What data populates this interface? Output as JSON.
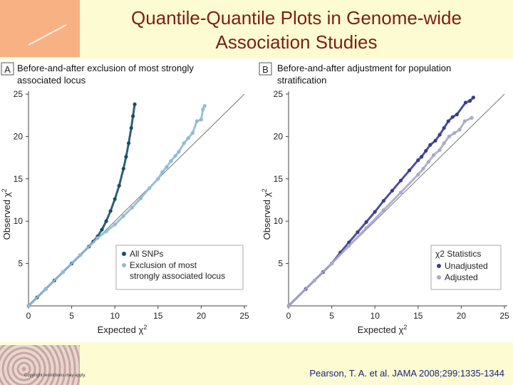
{
  "title_line1": "Quantile-Quantile Plots in Genome-wide",
  "title_line2": "Association Studies",
  "citation": "Pearson, T. A. et al. JAMA 2008;299:1335-1344",
  "copyright": "Copyright restrictions may apply.",
  "colors": {
    "orange": "#f7b183",
    "title": "#7a1f16",
    "citation": "#1a237e"
  },
  "chart_data": [
    {
      "type": "scatter",
      "panel_letter": "A",
      "title_line1": "Before-and-after exclusion of most strongly",
      "title_line2": "associated locus",
      "xlabel": "Expected χ2",
      "ylabel": "Observed χ2",
      "xlim": [
        0,
        25
      ],
      "ylim": [
        0,
        25
      ],
      "xticks": [
        0,
        5,
        10,
        15,
        20,
        25
      ],
      "yticks": [
        5,
        10,
        15,
        20,
        25
      ],
      "reference_line": "y = x",
      "legend": {
        "placement": "bottom-right",
        "title": "",
        "entries": [
          "All SNPs",
          "Exclusion of most strongly associated locus"
        ]
      },
      "series": [
        {
          "name": "All SNPs",
          "color": "#1a4e66",
          "points": [
            [
              0,
              0
            ],
            [
              1,
              1
            ],
            [
              2,
              2
            ],
            [
              3,
              3
            ],
            [
              4,
              4
            ],
            [
              5,
              5
            ],
            [
              6,
              6
            ],
            [
              7,
              7
            ],
            [
              7.5,
              7.6
            ],
            [
              8,
              8.2
            ],
            [
              8.5,
              9
            ],
            [
              9,
              10
            ],
            [
              9.5,
              11.2
            ],
            [
              10,
              12.6
            ],
            [
              10.5,
              14.2
            ],
            [
              11,
              16.2
            ],
            [
              11.3,
              17.6
            ],
            [
              11.6,
              19.2
            ],
            [
              11.9,
              21
            ],
            [
              12.1,
              22.4
            ],
            [
              12.3,
              23.8
            ]
          ]
        },
        {
          "name": "Exclusion of most strongly associated locus",
          "color": "#8fbbd6",
          "points": [
            [
              0,
              0
            ],
            [
              2,
              2
            ],
            [
              4,
              4
            ],
            [
              6,
              6
            ],
            [
              8,
              8
            ],
            [
              9,
              8.8
            ],
            [
              10,
              9.6
            ],
            [
              11,
              10.6
            ],
            [
              12,
              11.6
            ],
            [
              13,
              12.7
            ],
            [
              14,
              13.9
            ],
            [
              15,
              15
            ],
            [
              15.5,
              15.8
            ],
            [
              16,
              16.4
            ],
            [
              16.5,
              17.1
            ],
            [
              17,
              17.7
            ],
            [
              17.4,
              18.2
            ],
            [
              18,
              19.2
            ],
            [
              18.5,
              19.8
            ],
            [
              19,
              20.4
            ],
            [
              19.5,
              21.8
            ],
            [
              20,
              22
            ],
            [
              20.2,
              23.2
            ],
            [
              20.4,
              23.6
            ]
          ]
        }
      ]
    },
    {
      "type": "scatter",
      "panel_letter": "B",
      "title_line1": "Before-and-after adjustment for population",
      "title_line2": "stratification",
      "xlabel": "Expected χ2",
      "ylabel": "Observed χ2",
      "xlim": [
        0,
        25
      ],
      "ylim": [
        0,
        25
      ],
      "xticks": [
        0,
        5,
        10,
        15,
        20,
        25
      ],
      "yticks": [
        5,
        10,
        15,
        20,
        25
      ],
      "reference_line": "y = x",
      "legend": {
        "placement": "bottom-right",
        "title": "χ2 Statistics",
        "entries": [
          "Unadjusted",
          "Adjusted"
        ]
      },
      "series": [
        {
          "name": "Unadjusted",
          "color": "#3c3c8c",
          "points": [
            [
              0,
              0
            ],
            [
              2,
              2
            ],
            [
              4,
              4
            ],
            [
              5,
              5
            ],
            [
              6,
              6.3
            ],
            [
              7,
              7.5
            ],
            [
              8,
              8.7
            ],
            [
              9,
              9.9
            ],
            [
              10,
              11.1
            ],
            [
              11,
              12.4
            ],
            [
              12,
              13.6
            ],
            [
              13,
              14.8
            ],
            [
              14,
              16
            ],
            [
              15,
              17.2
            ],
            [
              15.4,
              17.6
            ],
            [
              15.9,
              18.3
            ],
            [
              16.4,
              19
            ],
            [
              17,
              19.5
            ],
            [
              17.5,
              20.2
            ],
            [
              18,
              21
            ],
            [
              18.5,
              21.8
            ],
            [
              19,
              22.3
            ],
            [
              19.5,
              22.6
            ],
            [
              20.5,
              24
            ],
            [
              21,
              24.2
            ],
            [
              21.4,
              24.6
            ]
          ]
        },
        {
          "name": "Adjusted",
          "color": "#a9a9c8",
          "points": [
            [
              0,
              0
            ],
            [
              3,
              3
            ],
            [
              5,
              5
            ],
            [
              7,
              7.1
            ],
            [
              9,
              9.2
            ],
            [
              11,
              11.3
            ],
            [
              13,
              13.4
            ],
            [
              15,
              15.5
            ],
            [
              15.6,
              16.2
            ],
            [
              16.2,
              17
            ],
            [
              16.8,
              17.8
            ],
            [
              17.5,
              18.4
            ],
            [
              18,
              19.2
            ],
            [
              18.6,
              20
            ],
            [
              19.2,
              20.4
            ],
            [
              19.8,
              20.8
            ],
            [
              20.4,
              21.8
            ],
            [
              21.2,
              22.2
            ]
          ]
        }
      ]
    }
  ]
}
